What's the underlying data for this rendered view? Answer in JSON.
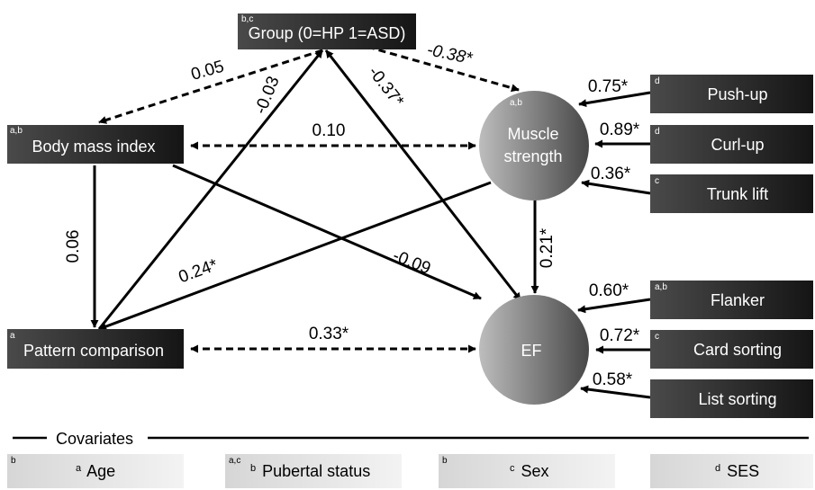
{
  "nodes": {
    "group": {
      "label": "Group (0=HP 1=ASD)",
      "sup": "b,c"
    },
    "bmi": {
      "label": "Body mass index",
      "sup": "a,b"
    },
    "pattern": {
      "label": "Pattern comparison",
      "sup": "a"
    },
    "muscle": {
      "label_line1": "Muscle",
      "label_line2": "strength",
      "sup": "a,b"
    },
    "ef": {
      "label": "EF",
      "sup": ""
    },
    "pushup": {
      "label": "Push-up",
      "sup": "d"
    },
    "curlup": {
      "label": "Curl-up",
      "sup": "d"
    },
    "trunk": {
      "label": "Trunk lift",
      "sup": "c"
    },
    "flanker": {
      "label": "Flanker",
      "sup": "a,b"
    },
    "card": {
      "label": "Card sorting",
      "sup": "c"
    },
    "list": {
      "label": "List sorting",
      "sup": ""
    }
  },
  "paths": {
    "group_bmi": "0.05",
    "group_pattern": "-0.03",
    "group_ef": "-0.37*",
    "group_muscle": "-0.38*",
    "bmi_muscle": "0.10",
    "bmi_pattern": "0.06",
    "bmi_ef": "-0.09",
    "muscle_pattern": "0.24*",
    "muscle_ef": "0.21*",
    "pattern_ef": "0.33*",
    "pushup": "0.75*",
    "curlup": "0.89*",
    "trunk": "0.36*",
    "flanker": "0.60*",
    "card": "0.72*",
    "list": "0.58*"
  },
  "covariates": {
    "title": "Covariates",
    "items": [
      {
        "sup_left": "b",
        "sup": "a",
        "label": "Age"
      },
      {
        "sup_left": "a,c",
        "sup": "b",
        "label": "Pubertal status"
      },
      {
        "sup_left": "b",
        "sup": "c",
        "label": "Sex"
      },
      {
        "sup_left": "",
        "sup": "d",
        "label": "SES"
      }
    ]
  }
}
